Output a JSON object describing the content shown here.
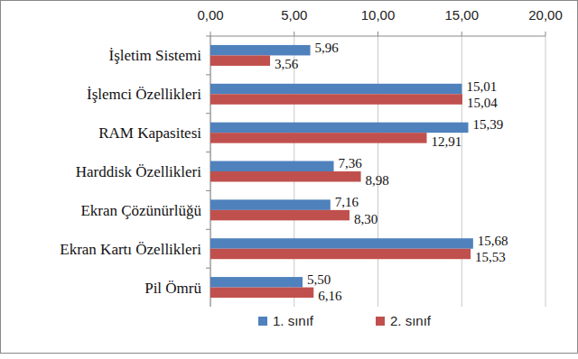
{
  "chart_data": {
    "type": "bar",
    "orientation": "horizontal",
    "categories": [
      "İşletim Sistemi",
      "İşlemci Özellikleri",
      "RAM Kapasitesi",
      "Harddisk Özellikleri",
      "Ekran Çözünürlüğü",
      "Ekran Kartı Özellikleri",
      "Pil Ömrü"
    ],
    "series": [
      {
        "name": "1. sınıf",
        "color": "#4f81bd",
        "values": [
          5.96,
          15.01,
          15.39,
          7.36,
          7.16,
          15.68,
          5.5
        ],
        "value_labels": [
          "5,96",
          "15,01",
          "15,39",
          "7,36",
          "7,16",
          "15,68",
          "5,50"
        ]
      },
      {
        "name": "2. sınıf",
        "color": "#c0504d",
        "values": [
          3.56,
          15.04,
          12.91,
          8.98,
          8.3,
          15.53,
          6.16
        ],
        "value_labels": [
          "3,56",
          "15,04",
          "12,91",
          "8,98",
          "8,30",
          "15,53",
          "6,16"
        ]
      }
    ],
    "xlim": [
      0,
      20
    ],
    "xticks": [
      {
        "value": 0,
        "label": "0,00"
      },
      {
        "value": 5,
        "label": "5,00"
      },
      {
        "value": 10,
        "label": "10,00"
      },
      {
        "value": 15,
        "label": "15,00"
      },
      {
        "value": 20,
        "label": "20,00"
      }
    ],
    "grid": true,
    "legend": "bottom",
    "data_labels": true
  }
}
